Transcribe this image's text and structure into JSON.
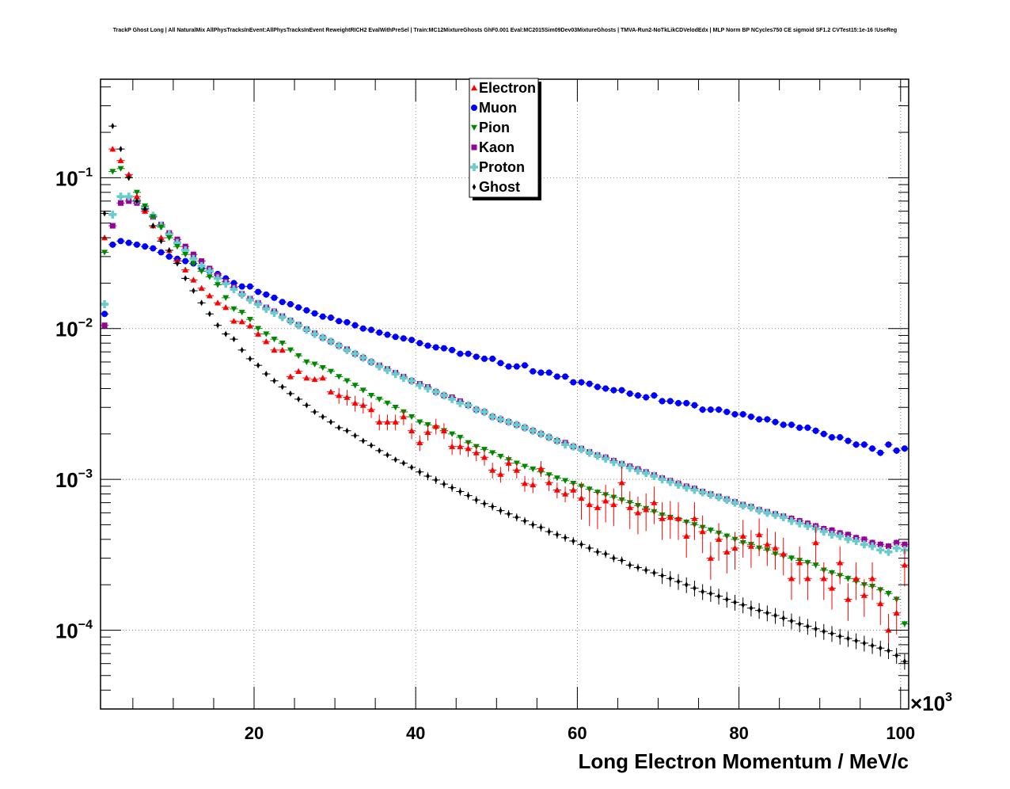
{
  "chart_data": {
    "type": "scatter",
    "title": "TrackP Ghost Long | All NaturalMix AllPhysTracksInEvent:AllPhysTracksInEvent ReweightRICH2 EvalWithPreSel | Train:MC12MixtureGhosts GhF0.001 Eval:MC2015Sim09Dev03MixtureGhosts | TMVA-Run2-NoTkLikCDVelodEdx | MLP Norm BP NCycles750 CE sigmoid SF1.2 CVTest15:1e-16 !UseReg",
    "xlabel": "Long Electron Momentum / MeV/c",
    "x_multiplier_label": "×10",
    "x_multiplier_exp": "3",
    "ylabel": "",
    "xlim": [
      1,
      101
    ],
    "ylim": [
      3e-05,
      0.45
    ],
    "yscale": "log",
    "grid": true,
    "legend_position": "top-center",
    "x_ticks": [
      20,
      40,
      60,
      80,
      100
    ],
    "x_tick_labels": [
      "20",
      "40",
      "60",
      "80",
      "100"
    ],
    "y_ticks": [
      0.0001,
      0.001,
      0.01,
      0.1
    ],
    "y_tick_base": "10",
    "y_tick_exponents": [
      "−4",
      "−3",
      "−2",
      "−1"
    ],
    "x": [
      1.5,
      2.5,
      3.5,
      4.5,
      5.5,
      6.5,
      7.5,
      8.5,
      9.5,
      10.5,
      11.5,
      12.5,
      13.5,
      14.5,
      15.5,
      16.5,
      17.5,
      18.5,
      19.5,
      20.5,
      21.5,
      22.5,
      23.5,
      24.5,
      25.5,
      26.5,
      27.5,
      28.5,
      29.5,
      30.5,
      31.5,
      32.5,
      33.5,
      34.5,
      35.5,
      36.5,
      37.5,
      38.5,
      39.5,
      40.5,
      41.5,
      42.5,
      43.5,
      44.5,
      45.5,
      46.5,
      47.5,
      48.5,
      49.5,
      50.5,
      51.5,
      52.5,
      53.5,
      54.5,
      55.5,
      56.5,
      57.5,
      58.5,
      59.5,
      60.5,
      61.5,
      62.5,
      63.5,
      64.5,
      65.5,
      66.5,
      67.5,
      68.5,
      69.5,
      70.5,
      71.5,
      72.5,
      73.5,
      74.5,
      75.5,
      76.5,
      77.5,
      78.5,
      79.5,
      80.5,
      81.5,
      82.5,
      83.5,
      84.5,
      85.5,
      86.5,
      87.5,
      88.5,
      89.5,
      90.5,
      91.5,
      92.5,
      93.5,
      94.5,
      95.5,
      96.5,
      97.5,
      98.5,
      99.5,
      100.5
    ],
    "series": [
      {
        "name": "Electron",
        "color": "#ff0000",
        "marker": "triangle-up",
        "values": [
          0.04,
          0.155,
          0.13,
          0.105,
          0.075,
          0.06,
          0.048,
          0.04,
          0.033,
          0.028,
          0.0245,
          0.021,
          0.0185,
          0.0165,
          0.0148,
          0.0138,
          0.0112,
          0.0111,
          0.0104,
          0.0092,
          0.0082,
          0.0072,
          0.0072,
          0.0048,
          0.0052,
          0.0047,
          0.0046,
          0.0047,
          0.0038,
          0.0036,
          0.0035,
          0.0032,
          0.0031,
          0.0029,
          0.0024,
          0.0024,
          0.0024,
          0.0026,
          0.0021,
          0.00175,
          0.00205,
          0.00225,
          0.0021,
          0.00165,
          0.00165,
          0.0016,
          0.0015,
          0.0014,
          0.00115,
          0.00108,
          0.00128,
          0.00115,
          0.00094,
          0.00092,
          0.00118,
          0.00095,
          0.00085,
          0.0008,
          0.00085,
          0.00075,
          0.00068,
          0.00065,
          0.00072,
          0.00068,
          0.00095,
          0.00065,
          0.0006,
          0.00063,
          0.0007,
          0.00055,
          0.00056,
          0.00055,
          0.00042,
          0.00055,
          0.00045,
          0.0003,
          0.0004,
          0.00033,
          0.00035,
          0.00042,
          0.00036,
          0.00043,
          0.00037,
          0.00035,
          0.00032,
          0.00022,
          0.00028,
          0.00022,
          0.00038,
          0.00022,
          0.00019,
          0.00028,
          0.00016,
          0.00022,
          0.00017,
          0.00022,
          0.00015,
          0.0001,
          0.00013,
          0.00027
        ]
      },
      {
        "name": "Muon",
        "color": "#0000ff",
        "marker": "circle",
        "values": [
          0.0125,
          0.036,
          0.038,
          0.037,
          0.036,
          0.035,
          0.034,
          0.032,
          0.03,
          0.029,
          0.028,
          0.027,
          0.025,
          0.024,
          0.023,
          0.0215,
          0.02,
          0.019,
          0.019,
          0.0175,
          0.0168,
          0.016,
          0.015,
          0.0145,
          0.0138,
          0.0132,
          0.0126,
          0.012,
          0.0118,
          0.0112,
          0.011,
          0.0105,
          0.01,
          0.0098,
          0.0094,
          0.0091,
          0.0088,
          0.0086,
          0.0084,
          0.008,
          0.0077,
          0.0075,
          0.0074,
          0.0072,
          0.0068,
          0.0068,
          0.0065,
          0.0063,
          0.0063,
          0.0059,
          0.0056,
          0.0056,
          0.0057,
          0.0052,
          0.0051,
          0.0051,
          0.0048,
          0.0048,
          0.0044,
          0.0044,
          0.0043,
          0.0041,
          0.004,
          0.0039,
          0.0039,
          0.0037,
          0.0036,
          0.0035,
          0.0036,
          0.0033,
          0.0033,
          0.0032,
          0.0032,
          0.0031,
          0.0029,
          0.0029,
          0.0029,
          0.0028,
          0.0027,
          0.0027,
          0.0026,
          0.0025,
          0.0025,
          0.0024,
          0.0023,
          0.0023,
          0.0022,
          0.0022,
          0.0021,
          0.002,
          0.0019,
          0.0019,
          0.0018,
          0.0017,
          0.0017,
          0.0016,
          0.0015,
          0.0017,
          0.00155,
          0.0016
        ]
      },
      {
        "name": "Pion",
        "color": "#008800",
        "marker": "triangle-down",
        "values": [
          0.032,
          0.11,
          0.115,
          0.1,
          0.08,
          0.065,
          0.055,
          0.047,
          0.04,
          0.035,
          0.031,
          0.027,
          0.024,
          0.022,
          0.0195,
          0.016,
          0.0135,
          0.0128,
          0.0115,
          0.01,
          0.0092,
          0.0085,
          0.008,
          0.0072,
          0.0066,
          0.006,
          0.0058,
          0.0055,
          0.0052,
          0.0048,
          0.0045,
          0.0042,
          0.0039,
          0.0036,
          0.0034,
          0.0032,
          0.003,
          0.0028,
          0.0026,
          0.0024,
          0.0023,
          0.0022,
          0.0021,
          0.002,
          0.0019,
          0.00175,
          0.00165,
          0.00158,
          0.0015,
          0.00142,
          0.00135,
          0.00128,
          0.00122,
          0.00117,
          0.00112,
          0.00107,
          0.00102,
          0.00098,
          0.00094,
          0.0009,
          0.00086,
          0.00082,
          0.00079,
          0.00076,
          0.00073,
          0.0007,
          0.00067,
          0.00064,
          0.00061,
          0.00058,
          0.00056,
          0.00054,
          0.00052,
          0.0005,
          0.00048,
          0.00046,
          0.00044,
          0.00042,
          0.0004,
          0.00038,
          0.00037,
          0.00035,
          0.00034,
          0.00032,
          0.00031,
          0.0003,
          0.00029,
          0.00028,
          0.00027,
          0.00025,
          0.00024,
          0.00023,
          0.00022,
          0.00021,
          0.0002,
          0.000195,
          0.000185,
          0.000175,
          0.00016,
          0.00011
        ]
      },
      {
        "name": "Kaon",
        "color": "#990099",
        "marker": "square",
        "values": [
          0.0105,
          0.048,
          0.068,
          0.07,
          0.068,
          0.062,
          0.055,
          0.049,
          0.043,
          0.039,
          0.035,
          0.031,
          0.028,
          0.025,
          0.0225,
          0.0205,
          0.0188,
          0.017,
          0.0158,
          0.0148,
          0.0138,
          0.013,
          0.0121,
          0.0113,
          0.0106,
          0.0099,
          0.0093,
          0.0087,
          0.0082,
          0.0077,
          0.0073,
          0.0068,
          0.0064,
          0.006,
          0.0057,
          0.0054,
          0.0051,
          0.0048,
          0.0045,
          0.0043,
          0.0041,
          0.0038,
          0.0036,
          0.0035,
          0.0033,
          0.0031,
          0.0029,
          0.0028,
          0.0026,
          0.0025,
          0.0024,
          0.0023,
          0.0022,
          0.0021,
          0.002,
          0.0019,
          0.0018,
          0.00175,
          0.00165,
          0.0016,
          0.00152,
          0.00145,
          0.0014,
          0.00133,
          0.00127,
          0.00122,
          0.00117,
          0.00112,
          0.00107,
          0.00102,
          0.00098,
          0.00094,
          0.0009,
          0.00087,
          0.00083,
          0.0008,
          0.00077,
          0.00074,
          0.00071,
          0.00068,
          0.00066,
          0.00063,
          0.00061,
          0.00059,
          0.00057,
          0.00055,
          0.00053,
          0.00051,
          0.00049,
          0.00047,
          0.00046,
          0.00044,
          0.00043,
          0.00041,
          0.0004,
          0.00038,
          0.00037,
          0.00036,
          0.00038,
          0.00037
        ]
      },
      {
        "name": "Proton",
        "color": "#66cccc",
        "marker": "cross",
        "values": [
          0.0145,
          0.057,
          0.075,
          0.075,
          0.071,
          0.063,
          0.056,
          0.048,
          0.042,
          0.037,
          0.033,
          0.029,
          0.026,
          0.024,
          0.0215,
          0.0198,
          0.0182,
          0.0168,
          0.0155,
          0.0145,
          0.0135,
          0.0127,
          0.0119,
          0.0112,
          0.0105,
          0.0098,
          0.0092,
          0.0087,
          0.0082,
          0.0077,
          0.0072,
          0.0068,
          0.0064,
          0.006,
          0.0056,
          0.0053,
          0.005,
          0.0047,
          0.0045,
          0.0042,
          0.004,
          0.0038,
          0.0036,
          0.0034,
          0.0032,
          0.0031,
          0.0029,
          0.0028,
          0.0026,
          0.0025,
          0.0024,
          0.0023,
          0.0022,
          0.0021,
          0.002,
          0.0019,
          0.0018,
          0.0017,
          0.00165,
          0.00158,
          0.0015,
          0.00143,
          0.00137,
          0.0013,
          0.00125,
          0.00119,
          0.00114,
          0.0011,
          0.00105,
          0.001,
          0.00096,
          0.00092,
          0.00088,
          0.00085,
          0.00082,
          0.00079,
          0.00076,
          0.00073,
          0.0007,
          0.00067,
          0.00065,
          0.00062,
          0.0006,
          0.00058,
          0.00056,
          0.00053,
          0.00051,
          0.00049,
          0.00047,
          0.00045,
          0.00043,
          0.00042,
          0.0004,
          0.00039,
          0.00037,
          0.00036,
          0.00034,
          0.00033,
          0.00035,
          0.00034
        ]
      },
      {
        "name": "Ghost",
        "color": "#000000",
        "marker": "diamond",
        "values": [
          0.058,
          0.22,
          0.155,
          0.1,
          0.07,
          0.062,
          0.048,
          0.038,
          0.033,
          0.027,
          0.0215,
          0.0178,
          0.0148,
          0.0125,
          0.0105,
          0.0092,
          0.0085,
          0.0072,
          0.0063,
          0.0057,
          0.005,
          0.0045,
          0.0041,
          0.0037,
          0.0034,
          0.0031,
          0.0028,
          0.0026,
          0.0024,
          0.0022,
          0.0021,
          0.00195,
          0.0018,
          0.00168,
          0.00155,
          0.00145,
          0.00135,
          0.00128,
          0.0012,
          0.00112,
          0.00105,
          0.00099,
          0.00093,
          0.00088,
          0.00083,
          0.00078,
          0.00073,
          0.00069,
          0.00066,
          0.00062,
          0.00059,
          0.00056,
          0.00053,
          0.0005,
          0.00048,
          0.00045,
          0.00043,
          0.00041,
          0.00039,
          0.00037,
          0.00035,
          0.00033,
          0.00032,
          0.0003,
          0.00029,
          0.00027,
          0.00026,
          0.00025,
          0.00024,
          0.00023,
          0.00022,
          0.00021,
          0.0002,
          0.00019,
          0.00018,
          0.000175,
          0.000168,
          0.00016,
          0.000153,
          0.000147,
          0.00014,
          0.000135,
          0.00013,
          0.000125,
          0.00012,
          0.000115,
          0.00011,
          0.000106,
          0.000102,
          9.8e-05,
          9.5e-05,
          9.1e-05,
          8.8e-05,
          8.5e-05,
          8.2e-05,
          7.9e-05,
          7.6e-05,
          7.3e-05,
          6.8e-05,
          6.2e-05
        ]
      }
    ]
  }
}
